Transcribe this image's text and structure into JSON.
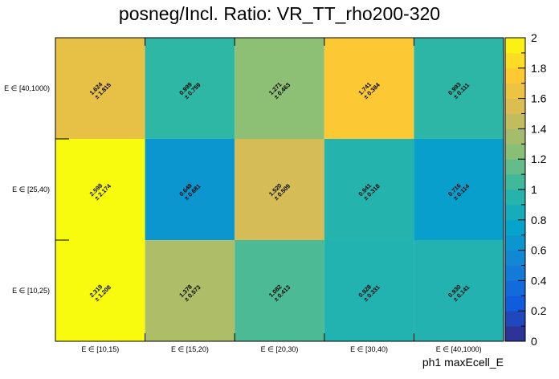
{
  "chart_data": {
    "type": "heatmap",
    "title": "posneg/Incl. Ratio: VR_TT_rho200-320",
    "xlabel": "ph1 maxEcell_E",
    "ylabel": "",
    "x_categories": [
      "E ∈ [10,15)",
      "E ∈ [15,20)",
      "E ∈ [20,30)",
      "E ∈ [30,40)",
      "E ∈ [40,1000)"
    ],
    "y_categories": [
      "E ∈ [10,25)",
      "E ∈ [25,40)",
      "E ∈ [40,1000)"
    ],
    "values": [
      [
        2.319,
        1.378,
        1.082,
        0.928,
        0.93
      ],
      [
        2.598,
        0.649,
        1.52,
        0.941,
        0.716
      ],
      [
        1.624,
        0.999,
        1.271,
        1.741,
        0.993
      ]
    ],
    "errors": [
      [
        1.208,
        0.573,
        0.413,
        0.331,
        0.141
      ],
      [
        2.174,
        0.681,
        0.509,
        0.318,
        0.114
      ],
      [
        1.815,
        0.759,
        0.463,
        0.384,
        0.111
      ]
    ],
    "zlim": [
      0,
      2
    ],
    "colorbar_ticks": [
      "0",
      "0.2",
      "0.4",
      "0.6",
      "0.8",
      "1",
      "1.2",
      "1.4",
      "1.6",
      "1.8",
      "2"
    ],
    "colormap": [
      "#352a87",
      "#0f5cdd",
      "#1481d6",
      "#06a4ca",
      "#2eb7a4",
      "#87bf77",
      "#d1bb59",
      "#fec832",
      "#f9fb0e"
    ]
  }
}
